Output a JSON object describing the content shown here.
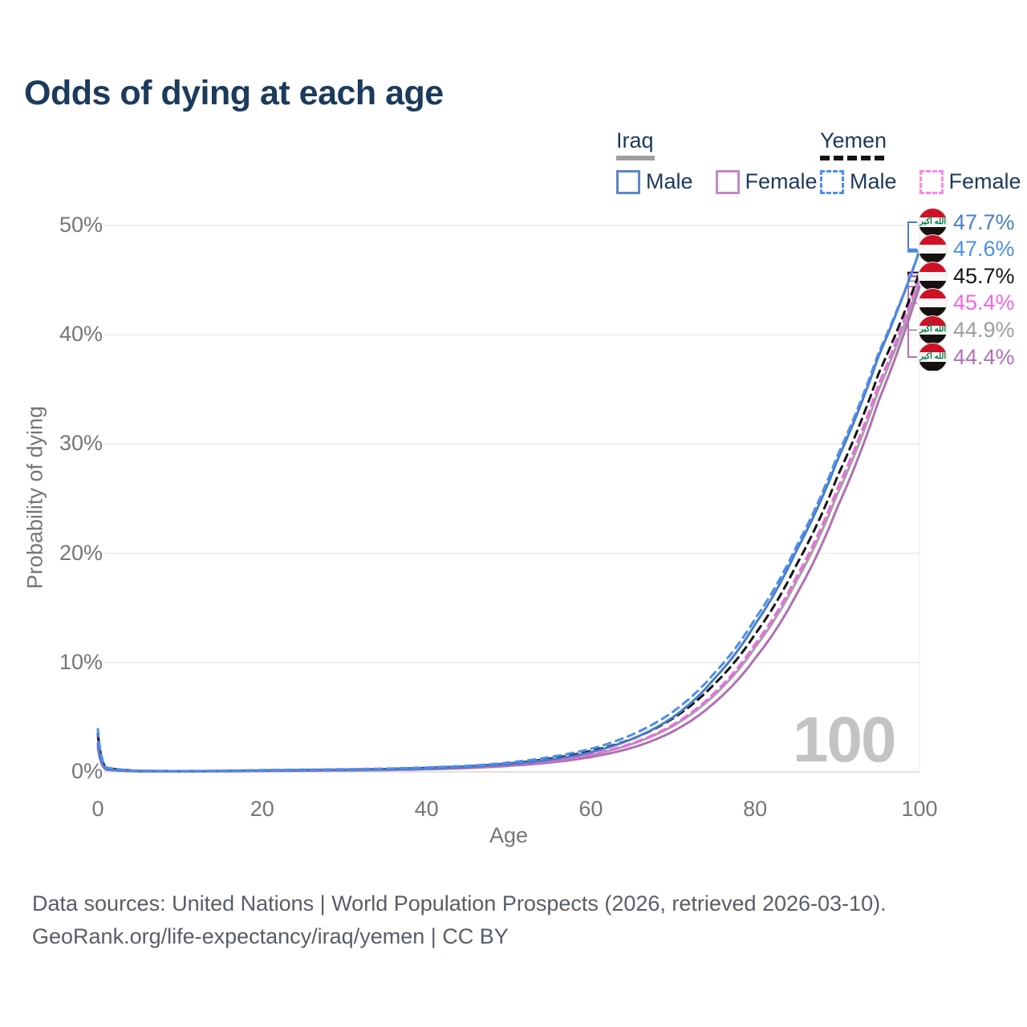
{
  "title": "Odds of dying at each age",
  "watermark": "100",
  "colors": {
    "title_text": "#1c3a5c",
    "axis_text": "#767676",
    "gridline": "#ebebeb",
    "zero_line": "#d6d6d6",
    "iraq_male": "#4a7dc4",
    "iraq_female": "#b16fb4",
    "iraq_both": "#a3a3a3",
    "yemen_male": "#4c8df2",
    "yemen_female": "#f266e4",
    "yemen_both": "#141414",
    "flag_red": "#ce1126",
    "flag_green": "#007a3d"
  },
  "legend": {
    "groups": [
      {
        "country": "Iraq",
        "swatch_color": "#9e9e9e",
        "swatch_dashed": false,
        "items": [
          {
            "label": "Male",
            "color": "#5b87c5",
            "dashed": false
          },
          {
            "label": "Female",
            "color": "#c488c4",
            "dashed": false
          }
        ]
      },
      {
        "country": "Yemen",
        "swatch_color": "#141414",
        "swatch_dashed": true,
        "items": [
          {
            "label": "Male",
            "color": "#4c8df2",
            "dashed": true
          },
          {
            "label": "Female",
            "color": "#ff85e8",
            "dashed": true
          }
        ]
      }
    ]
  },
  "value_labels": [
    {
      "text": "47.7%",
      "value": 47.7,
      "color": "#4a7dc4",
      "flag": "iraq"
    },
    {
      "text": "47.6%",
      "value": 47.6,
      "color": "#4c8df2",
      "flag": "yemen"
    },
    {
      "text": "45.7%",
      "value": 45.7,
      "color": "#141414",
      "flag": "yemen"
    },
    {
      "text": "45.4%",
      "value": 45.4,
      "color": "#f266e4",
      "flag": "yemen"
    },
    {
      "text": "44.9%",
      "value": 44.9,
      "color": "#9e9e9e",
      "flag": "iraq"
    },
    {
      "text": "44.4%",
      "value": 44.4,
      "color": "#b16fb4",
      "flag": "iraq"
    }
  ],
  "flags": {
    "iraq_script": "الله أكبر"
  },
  "chart_data": {
    "type": "line",
    "title": "Odds of dying at each age",
    "xlabel": "Age",
    "ylabel": "Probability of dying",
    "xlim": [
      0,
      100
    ],
    "ylim": [
      0,
      50
    ],
    "xticks": [
      0,
      20,
      40,
      60,
      80,
      100
    ],
    "yticks": [
      0,
      10,
      20,
      30,
      40,
      50
    ],
    "ytick_labels": [
      "0%",
      "10%",
      "20%",
      "30%",
      "40%",
      "50%"
    ],
    "grid": "horizontal",
    "legend_position": "top-right",
    "x": [
      0,
      1,
      5,
      10,
      15,
      20,
      25,
      30,
      35,
      40,
      45,
      50,
      55,
      60,
      65,
      70,
      75,
      80,
      85,
      90,
      95,
      100
    ],
    "series": [
      {
        "name": "Iraq — Male",
        "color": "#4a7dc4",
        "dashed": false,
        "values": [
          2.6,
          0.25,
          0.06,
          0.05,
          0.08,
          0.12,
          0.15,
          0.18,
          0.22,
          0.3,
          0.45,
          0.7,
          1.1,
          1.8,
          3.0,
          5.0,
          8.5,
          13.5,
          20.2,
          28.5,
          38.0,
          47.7
        ]
      },
      {
        "name": "Iraq — Female",
        "color": "#b16fb4",
        "dashed": false,
        "values": [
          2.2,
          0.2,
          0.05,
          0.04,
          0.05,
          0.08,
          0.1,
          0.13,
          0.17,
          0.24,
          0.35,
          0.55,
          0.85,
          1.35,
          2.2,
          3.7,
          6.3,
          10.4,
          16.2,
          24.2,
          33.9,
          44.4
        ]
      },
      {
        "name": "Yemen — Male",
        "color": "#4c8df2",
        "dashed": true,
        "values": [
          3.9,
          0.4,
          0.1,
          0.07,
          0.1,
          0.16,
          0.2,
          0.24,
          0.3,
          0.4,
          0.55,
          0.85,
          1.35,
          2.1,
          3.4,
          5.5,
          9.0,
          14.0,
          20.6,
          28.9,
          38.3,
          47.6
        ]
      },
      {
        "name": "Yemen — Female",
        "color": "#f266e4",
        "dashed": true,
        "values": [
          3.2,
          0.32,
          0.08,
          0.05,
          0.07,
          0.1,
          0.13,
          0.16,
          0.21,
          0.3,
          0.42,
          0.65,
          1.0,
          1.6,
          2.6,
          4.3,
          7.2,
          11.7,
          17.8,
          25.9,
          35.4,
          45.4
        ]
      },
      {
        "name": "Iraq — Both sexes",
        "color": "#a3a3a3",
        "dashed": false,
        "values": [
          2.4,
          0.22,
          0.05,
          0.04,
          0.07,
          0.1,
          0.13,
          0.16,
          0.2,
          0.27,
          0.4,
          0.62,
          0.95,
          1.55,
          2.55,
          4.2,
          7.0,
          11.4,
          17.4,
          25.4,
          34.9,
          44.9
        ]
      },
      {
        "name": "Yemen — Both sexes",
        "color": "#141414",
        "dashed": true,
        "values": [
          3.5,
          0.36,
          0.09,
          0.06,
          0.09,
          0.13,
          0.17,
          0.2,
          0.26,
          0.35,
          0.5,
          0.75,
          1.2,
          1.9,
          3.0,
          4.9,
          8.0,
          12.6,
          18.9,
          27.0,
          36.4,
          45.7
        ]
      }
    ]
  },
  "footer": {
    "line1": "Data sources: United Nations | World Population Prospects (2026, retrieved 2026-03-10).",
    "line2": "GeoRank.org/life-expectancy/iraq/yemen | CC BY"
  }
}
